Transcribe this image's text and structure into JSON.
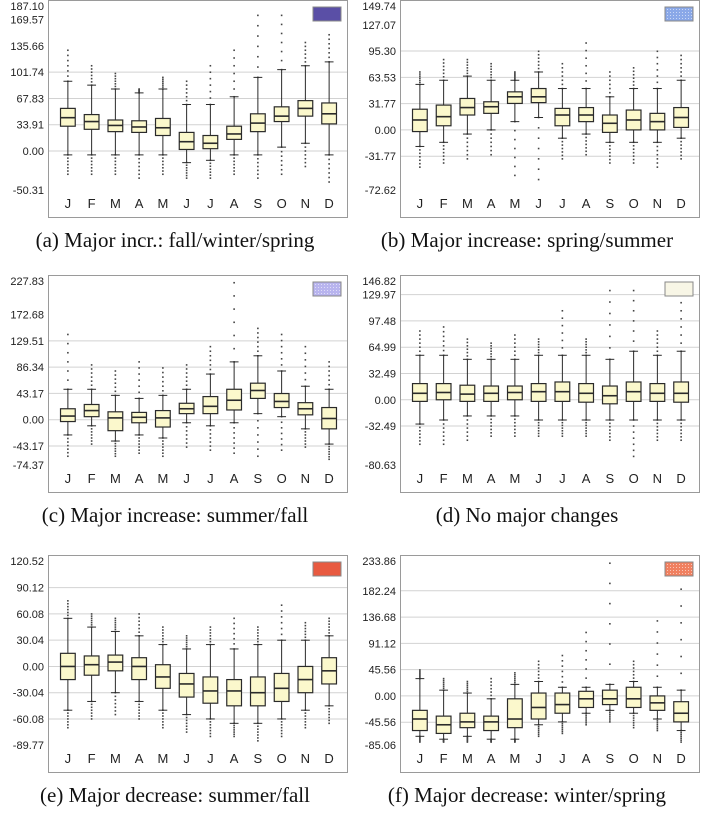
{
  "months": [
    "J",
    "F",
    "M",
    "A",
    "M",
    "J",
    "J",
    "A",
    "S",
    "O",
    "N",
    "D"
  ],
  "colors": {
    "box_fill": "#fbf8cc",
    "box_stroke": "#2a2a2a",
    "grid": "#d2d2d2",
    "frame": "#9a9a9a",
    "outlier": "#444444"
  },
  "chart_data": [
    {
      "type": "box",
      "caption": "(a)  Major incr.: fall/winter/spring",
      "legend_color": "#5a4fa6",
      "legend_pattern": "solid",
      "yticks": [
        "187.10",
        "169.57",
        "135.66",
        "101.74",
        "67.83",
        "33.91",
        "0.00",
        "-50.31"
      ],
      "ytick_values": [
        187.1,
        169.57,
        135.66,
        101.74,
        67.83,
        33.91,
        0,
        -50.31
      ],
      "ylim": [
        -50.31,
        187.1
      ],
      "gridlines": [
        101.74,
        67.83,
        33.91,
        0
      ],
      "boxes": [
        {
          "min": -5,
          "q1": 32,
          "median": 43,
          "q3": 55,
          "max": 90,
          "out_low": -30,
          "out_high": 130
        },
        {
          "min": -5,
          "q1": 28,
          "median": 38,
          "q3": 47,
          "max": 85,
          "out_low": -30,
          "out_high": 110
        },
        {
          "min": -5,
          "q1": 25,
          "median": 33,
          "q3": 40,
          "max": 80,
          "out_low": -30,
          "out_high": 100
        },
        {
          "min": -5,
          "q1": 24,
          "median": 31,
          "q3": 39,
          "max": 75,
          "out_low": -35,
          "out_high": 80
        },
        {
          "min": -5,
          "q1": 20,
          "median": 30,
          "q3": 42,
          "max": 80,
          "out_low": -30,
          "out_high": 95
        },
        {
          "min": -15,
          "q1": 2,
          "median": 12,
          "q3": 24,
          "max": 60,
          "out_low": -35,
          "out_high": 90
        },
        {
          "min": -12,
          "q1": 3,
          "median": 10,
          "q3": 20,
          "max": 60,
          "out_low": -35,
          "out_high": 110
        },
        {
          "min": -5,
          "q1": 15,
          "median": 22,
          "q3": 32,
          "max": 70,
          "out_low": -30,
          "out_high": 130
        },
        {
          "min": -5,
          "q1": 25,
          "median": 36,
          "q3": 48,
          "max": 95,
          "out_low": -35,
          "out_high": 175
        },
        {
          "min": 5,
          "q1": 38,
          "median": 45,
          "q3": 57,
          "max": 105,
          "out_low": -30,
          "out_high": 175
        },
        {
          "min": 10,
          "q1": 45,
          "median": 55,
          "q3": 65,
          "max": 110,
          "out_low": -20,
          "out_high": 140
        },
        {
          "min": -5,
          "q1": 35,
          "median": 48,
          "q3": 62,
          "max": 115,
          "out_low": -40,
          "out_high": 150
        }
      ]
    },
    {
      "type": "box",
      "caption": "(b)  Major increase: spring/summer",
      "legend_color": "#8aa8e8",
      "legend_pattern": "dotted",
      "yticks": [
        "149.74",
        "127.07",
        "95.30",
        "63.53",
        "31.77",
        "0.00",
        "-31.77",
        "-72.62"
      ],
      "ytick_values": [
        149.74,
        127.07,
        95.3,
        63.53,
        31.77,
        0,
        -31.77,
        -72.62
      ],
      "ylim": [
        -72.62,
        149.74
      ],
      "gridlines": [
        95.3,
        63.53,
        31.77,
        0,
        -31.77
      ],
      "boxes": [
        {
          "min": -20,
          "q1": -2,
          "median": 12,
          "q3": 25,
          "max": 55,
          "out_low": -45,
          "out_high": 70
        },
        {
          "min": -15,
          "q1": 5,
          "median": 16,
          "q3": 30,
          "max": 60,
          "out_low": -40,
          "out_high": 85
        },
        {
          "min": -5,
          "q1": 18,
          "median": 27,
          "q3": 38,
          "max": 65,
          "out_low": -35,
          "out_high": 85
        },
        {
          "min": 0,
          "q1": 20,
          "median": 28,
          "q3": 34,
          "max": 60,
          "out_low": -30,
          "out_high": 80
        },
        {
          "min": 10,
          "q1": 32,
          "median": 40,
          "q3": 46,
          "max": 60,
          "out_low": -55,
          "out_high": 70
        },
        {
          "min": 15,
          "q1": 33,
          "median": 40,
          "q3": 50,
          "max": 70,
          "out_low": -60,
          "out_high": 95
        },
        {
          "min": -10,
          "q1": 5,
          "median": 18,
          "q3": 26,
          "max": 50,
          "out_low": -35,
          "out_high": 80
        },
        {
          "min": -5,
          "q1": 10,
          "median": 18,
          "q3": 27,
          "max": 50,
          "out_low": -30,
          "out_high": 105
        },
        {
          "min": -15,
          "q1": -3,
          "median": 8,
          "q3": 18,
          "max": 40,
          "out_low": -40,
          "out_high": 70
        },
        {
          "min": -15,
          "q1": 0,
          "median": 12,
          "q3": 24,
          "max": 50,
          "out_low": -40,
          "out_high": 75
        },
        {
          "min": -15,
          "q1": 0,
          "median": 10,
          "q3": 20,
          "max": 50,
          "out_low": -45,
          "out_high": 95
        },
        {
          "min": -10,
          "q1": 3,
          "median": 15,
          "q3": 27,
          "max": 60,
          "out_low": -35,
          "out_high": 90
        }
      ]
    },
    {
      "type": "box",
      "caption": "(c)  Major increase: summer/fall",
      "legend_color": "#b8b4ee",
      "legend_pattern": "dotted",
      "yticks": [
        "227.83",
        "172.68",
        "129.51",
        "86.34",
        "43.17",
        "0.00",
        "-43.17",
        "-74.37"
      ],
      "ytick_values": [
        227.83,
        172.68,
        129.51,
        86.34,
        43.17,
        0,
        -43.17,
        -74.37
      ],
      "ylim": [
        -74.37,
        227.83
      ],
      "gridlines": [
        129.51,
        86.34,
        43.17,
        0,
        -43.17
      ],
      "boxes": [
        {
          "min": -25,
          "q1": -3,
          "median": 6,
          "q3": 18,
          "max": 50,
          "out_low": -60,
          "out_high": 140
        },
        {
          "min": -10,
          "q1": 5,
          "median": 15,
          "q3": 25,
          "max": 50,
          "out_low": -40,
          "out_high": 90
        },
        {
          "min": -35,
          "q1": -18,
          "median": 3,
          "q3": 13,
          "max": 40,
          "out_low": -60,
          "out_high": 80
        },
        {
          "min": -25,
          "q1": -5,
          "median": 4,
          "q3": 12,
          "max": 35,
          "out_low": -55,
          "out_high": 95
        },
        {
          "min": -30,
          "q1": -12,
          "median": 3,
          "q3": 15,
          "max": 40,
          "out_low": -60,
          "out_high": 85
        },
        {
          "min": -5,
          "q1": 10,
          "median": 18,
          "q3": 27,
          "max": 50,
          "out_low": -45,
          "out_high": 90
        },
        {
          "min": -10,
          "q1": 10,
          "median": 22,
          "q3": 38,
          "max": 75,
          "out_low": -50,
          "out_high": 120
        },
        {
          "min": -5,
          "q1": 16,
          "median": 32,
          "q3": 50,
          "max": 95,
          "out_low": -55,
          "out_high": 225
        },
        {
          "min": 10,
          "q1": 35,
          "median": 48,
          "q3": 60,
          "max": 105,
          "out_low": -60,
          "out_high": 150
        },
        {
          "min": 5,
          "q1": 20,
          "median": 30,
          "q3": 43,
          "max": 80,
          "out_low": -50,
          "out_high": 140
        },
        {
          "min": -15,
          "q1": 8,
          "median": 18,
          "q3": 28,
          "max": 55,
          "out_low": -45,
          "out_high": 120
        },
        {
          "min": -40,
          "q1": -15,
          "median": 2,
          "q3": 20,
          "max": 50,
          "out_low": -65,
          "out_high": 95
        }
      ]
    },
    {
      "type": "box",
      "caption": "(d)  No major changes",
      "legend_color": "#f8f6e6",
      "legend_pattern": "solid",
      "yticks": [
        "146.82",
        "129.97",
        "97.48",
        "64.99",
        "32.49",
        "0.00",
        "-32.49",
        "-80.63"
      ],
      "ytick_values": [
        146.82,
        129.97,
        97.48,
        64.99,
        32.49,
        0,
        -32.49,
        -80.63
      ],
      "ylim": [
        -80.63,
        146.82
      ],
      "gridlines": [
        129.97,
        97.48,
        64.99,
        32.49,
        0,
        -32.49
      ],
      "boxes": [
        {
          "min": -30,
          "q1": -2,
          "median": 8,
          "q3": 20,
          "max": 55,
          "out_low": -55,
          "out_high": 85
        },
        {
          "min": -25,
          "q1": 0,
          "median": 9,
          "q3": 20,
          "max": 55,
          "out_low": -55,
          "out_high": 90
        },
        {
          "min": -20,
          "q1": -2,
          "median": 7,
          "q3": 18,
          "max": 50,
          "out_low": -50,
          "out_high": 75
        },
        {
          "min": -20,
          "q1": -2,
          "median": 8,
          "q3": 17,
          "max": 50,
          "out_low": -45,
          "out_high": 70
        },
        {
          "min": -20,
          "q1": 0,
          "median": 9,
          "q3": 17,
          "max": 50,
          "out_low": -45,
          "out_high": 80
        },
        {
          "min": -25,
          "q1": -2,
          "median": 10,
          "q3": 20,
          "max": 55,
          "out_low": -45,
          "out_high": 75
        },
        {
          "min": -25,
          "q1": -2,
          "median": 10,
          "q3": 22,
          "max": 55,
          "out_low": -45,
          "out_high": 110
        },
        {
          "min": -25,
          "q1": -3,
          "median": 8,
          "q3": 20,
          "max": 55,
          "out_low": -45,
          "out_high": 75
        },
        {
          "min": -25,
          "q1": -5,
          "median": 5,
          "q3": 17,
          "max": 50,
          "out_low": -50,
          "out_high": 135
        },
        {
          "min": -25,
          "q1": -2,
          "median": 10,
          "q3": 22,
          "max": 60,
          "out_low": -70,
          "out_high": 135
        },
        {
          "min": -25,
          "q1": -2,
          "median": 8,
          "q3": 20,
          "max": 55,
          "out_low": -50,
          "out_high": 85
        },
        {
          "min": -25,
          "q1": -3,
          "median": 8,
          "q3": 22,
          "max": 60,
          "out_low": -50,
          "out_high": 120
        }
      ]
    },
    {
      "type": "box",
      "caption": "(e)  Major decrease: summer/fall",
      "legend_color": "#e85a40",
      "legend_pattern": "solid",
      "yticks": [
        "120.52",
        "90.12",
        "60.08",
        "30.04",
        "0.00",
        "-30.04",
        "-60.08",
        "-89.77"
      ],
      "ytick_values": [
        120.52,
        90.12,
        60.08,
        30.04,
        0,
        -30.04,
        -60.08,
        -89.77
      ],
      "ylim": [
        -89.77,
        120.52
      ],
      "gridlines": [
        90.12,
        60.08,
        30.04,
        0,
        -30.04,
        -60.08
      ],
      "boxes": [
        {
          "min": -50,
          "q1": -15,
          "median": 0,
          "q3": 15,
          "max": 55,
          "out_low": -70,
          "out_high": 75
        },
        {
          "min": -40,
          "q1": -10,
          "median": 2,
          "q3": 12,
          "max": 45,
          "out_low": -60,
          "out_high": 60
        },
        {
          "min": -30,
          "q1": -5,
          "median": 5,
          "q3": 13,
          "max": 40,
          "out_low": -55,
          "out_high": 55
        },
        {
          "min": -40,
          "q1": -15,
          "median": 0,
          "q3": 10,
          "max": 35,
          "out_low": -60,
          "out_high": 60
        },
        {
          "min": -50,
          "q1": -25,
          "median": -12,
          "q3": 2,
          "max": 25,
          "out_low": -70,
          "out_high": 45
        },
        {
          "min": -55,
          "q1": -35,
          "median": -20,
          "q3": -8,
          "max": 20,
          "out_low": -75,
          "out_high": 35
        },
        {
          "min": -60,
          "q1": -42,
          "median": -28,
          "q3": -12,
          "max": 25,
          "out_low": -80,
          "out_high": 45
        },
        {
          "min": -65,
          "q1": -45,
          "median": -28,
          "q3": -15,
          "max": 20,
          "out_low": -80,
          "out_high": 55
        },
        {
          "min": -65,
          "q1": -45,
          "median": -30,
          "q3": -12,
          "max": 25,
          "out_low": -85,
          "out_high": 45
        },
        {
          "min": -60,
          "q1": -40,
          "median": -25,
          "q3": -8,
          "max": 30,
          "out_low": -80,
          "out_high": 70
        },
        {
          "min": -50,
          "q1": -30,
          "median": -15,
          "q3": 0,
          "max": 30,
          "out_low": -70,
          "out_high": 50
        },
        {
          "min": -45,
          "q1": -20,
          "median": -5,
          "q3": 10,
          "max": 35,
          "out_low": -65,
          "out_high": 55
        }
      ]
    },
    {
      "type": "box",
      "caption": "(f)  Major decrease: winter/spring",
      "legend_color": "#f08060",
      "legend_pattern": "dotted",
      "yticks": [
        "233.86",
        "182.24",
        "136.68",
        "91.12",
        "45.56",
        "0.00",
        "-45.56",
        "-85.06"
      ],
      "ytick_values": [
        233.86,
        182.24,
        136.68,
        91.12,
        45.56,
        0,
        -45.56,
        -85.06
      ],
      "ylim": [
        -85.06,
        233.86
      ],
      "gridlines": [
        182.24,
        136.68,
        91.12,
        45.56,
        0,
        -45.56
      ],
      "boxes": [
        {
          "min": -70,
          "q1": -60,
          "median": -40,
          "q3": -25,
          "max": 30,
          "out_low": -80,
          "out_high": 45
        },
        {
          "min": -75,
          "q1": -65,
          "median": -50,
          "q3": -35,
          "max": 10,
          "out_low": -80,
          "out_high": 30
        },
        {
          "min": -70,
          "q1": -55,
          "median": -45,
          "q3": -30,
          "max": 5,
          "out_low": -80,
          "out_high": 25
        },
        {
          "min": -75,
          "q1": -60,
          "median": -45,
          "q3": -35,
          "max": -5,
          "out_low": -80,
          "out_high": 30
        },
        {
          "min": -75,
          "q1": -55,
          "median": -40,
          "q3": -5,
          "max": 20,
          "out_low": -80,
          "out_high": 40
        },
        {
          "min": -50,
          "q1": -40,
          "median": -20,
          "q3": 5,
          "max": 25,
          "out_low": -70,
          "out_high": 60
        },
        {
          "min": -45,
          "q1": -30,
          "median": -15,
          "q3": 5,
          "max": 15,
          "out_low": -65,
          "out_high": 70
        },
        {
          "min": -30,
          "q1": -20,
          "median": -5,
          "q3": 8,
          "max": 15,
          "out_low": -50,
          "out_high": 110
        },
        {
          "min": -25,
          "q1": -15,
          "median": -5,
          "q3": 10,
          "max": 20,
          "out_low": -45,
          "out_high": 230
        },
        {
          "min": -30,
          "q1": -20,
          "median": -5,
          "q3": 15,
          "max": 25,
          "out_low": -55,
          "out_high": 60
        },
        {
          "min": -40,
          "q1": -25,
          "median": -12,
          "q3": 0,
          "max": 15,
          "out_low": -60,
          "out_high": 130
        },
        {
          "min": -60,
          "q1": -45,
          "median": -30,
          "q3": -10,
          "max": 10,
          "out_low": -80,
          "out_high": 185
        }
      ]
    }
  ]
}
